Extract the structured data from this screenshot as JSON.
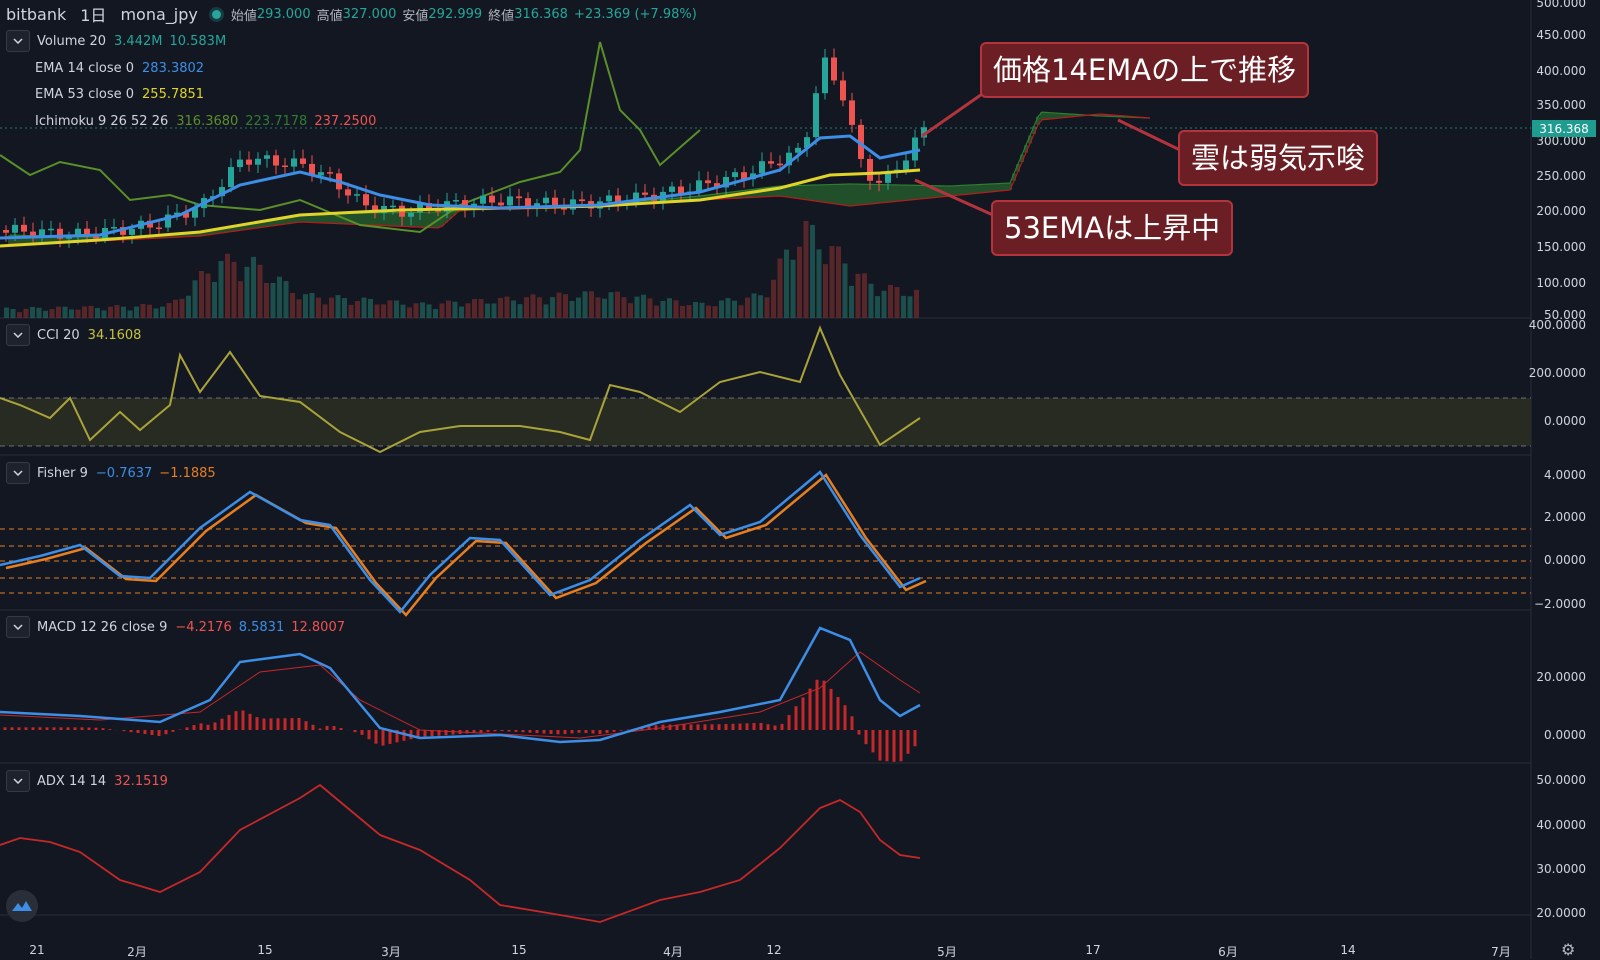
{
  "header": {
    "exchange": "bitbank",
    "interval": "1日",
    "symbol": "mona_jpy",
    "open_label": "始値",
    "open": "293.000",
    "high_label": "高値",
    "high": "327.000",
    "low_label": "安値",
    "low": "292.999",
    "close_label": "終値",
    "close": "316.368",
    "change": "+23.369 (+7.98%)"
  },
  "legends": {
    "volume": {
      "name": "Volume 20",
      "v1": "3.442M",
      "v2": "10.583M"
    },
    "ema14": {
      "name": "EMA 14 close 0",
      "v1": "283.3802"
    },
    "ema53": {
      "name": "EMA 53 close 0",
      "v1": "255.7851"
    },
    "ichimoku": {
      "name": "Ichimoku 9 26 52 26",
      "v1": "316.3680",
      "v2": "223.7178",
      "v3": "237.2500"
    },
    "cci": {
      "name": "CCI 20",
      "v1": "34.1608"
    },
    "fisher": {
      "name": "Fisher 9",
      "v1": "−0.7637",
      "v2": "−1.1885"
    },
    "macd": {
      "name": "MACD 12 26 close 9",
      "v1": "−4.2176",
      "v2": "8.5831",
      "v3": "12.8007"
    },
    "adx": {
      "name": "ADX 14 14",
      "v1": "32.1519"
    }
  },
  "price_axis": {
    "labels": [
      "500.000",
      "450.000",
      "400.000",
      "350.000",
      "300.000",
      "250.000",
      "200.000",
      "150.000",
      "100.000",
      "50.000"
    ],
    "current_price": "316.368"
  },
  "cci_axis": {
    "labels": [
      "400.0000",
      "200.0000",
      "0.0000"
    ]
  },
  "fisher_axis": {
    "labels": [
      "4.0000",
      "2.0000",
      "0.0000",
      "−2.0000"
    ]
  },
  "macd_axis": {
    "labels": [
      "20.0000",
      "0.0000"
    ]
  },
  "adx_axis": {
    "labels": [
      "50.0000",
      "40.0000",
      "30.0000",
      "20.0000"
    ]
  },
  "time_axis": {
    "labels": [
      "21",
      "2月",
      "15",
      "3月",
      "15",
      "4月",
      "12",
      "5月",
      "17",
      "6月",
      "14",
      "7月"
    ]
  },
  "annotations": {
    "a1": "価格14EMAの上で推移",
    "a2": "雲は弱気示唆",
    "a3": "53EMAは上昇中"
  },
  "colors": {
    "background": "#131722",
    "up": "#26a69a",
    "down": "#ef5350",
    "ema14": "#3d8ee6",
    "ema53": "#e0d32a",
    "cloud_bull": "#2e7d32",
    "cloud_bear": "#b71c1c",
    "lagging": "#5a8f29",
    "cci": "#a9a33a",
    "fisher": "#3d8ee6",
    "fisher_trigger": "#e67e22",
    "macd": "#3d8ee6",
    "signal": "#c62828",
    "adx": "#c62828",
    "annotation_bg": "#6b1e23"
  }
}
